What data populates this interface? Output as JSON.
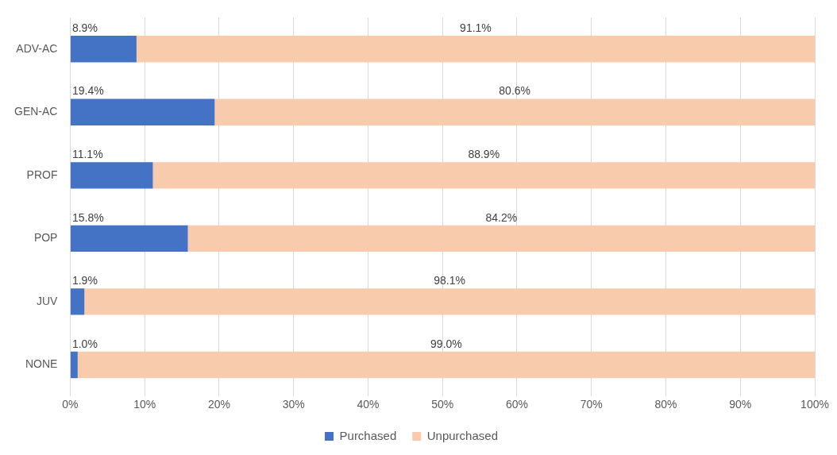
{
  "chart_data": {
    "type": "bar",
    "orientation": "horizontal",
    "stacked": true,
    "categories": [
      "ADV-AC",
      "GEN-AC",
      "PROF",
      "POP",
      "JUV",
      "NONE"
    ],
    "series": [
      {
        "name": "Purchased",
        "color": "#4472c4",
        "values": [
          8.9,
          19.4,
          11.1,
          15.8,
          1.9,
          1.0
        ],
        "value_labels": [
          "8.9%",
          "19.4%",
          "11.1%",
          "15.8%",
          "1.9%",
          "1.0%"
        ]
      },
      {
        "name": "Unpurchased",
        "color": "#f8cbad",
        "values": [
          91.1,
          80.6,
          88.9,
          84.2,
          98.1,
          99.0
        ],
        "value_labels": [
          "91.1%",
          "80.6%",
          "88.9%",
          "84.2%",
          "98.1%",
          "99.0%"
        ]
      }
    ],
    "xlim": [
      0,
      100
    ],
    "xticks": [
      {
        "value": 0,
        "label": "0%"
      },
      {
        "value": 10,
        "label": "10%"
      },
      {
        "value": 20,
        "label": "20%"
      },
      {
        "value": 30,
        "label": "30%"
      },
      {
        "value": 40,
        "label": "40%"
      },
      {
        "value": 50,
        "label": "50%"
      },
      {
        "value": 60,
        "label": "60%"
      },
      {
        "value": 70,
        "label": "70%"
      },
      {
        "value": 80,
        "label": "80%"
      },
      {
        "value": 90,
        "label": "90%"
      },
      {
        "value": 100,
        "label": "100%"
      }
    ],
    "grid": true,
    "legend": "bottom",
    "data_labels": true
  }
}
